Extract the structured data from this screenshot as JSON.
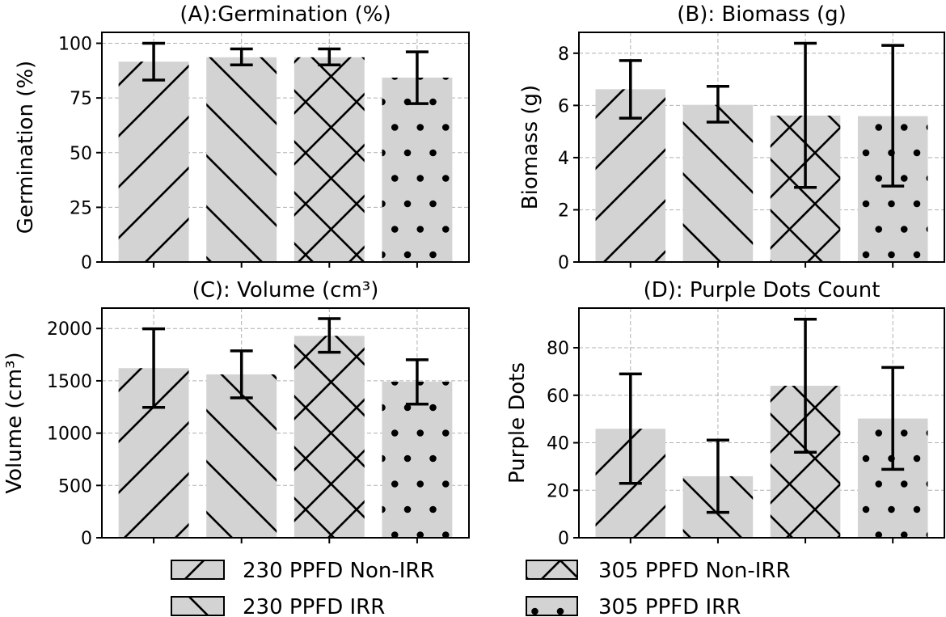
{
  "chart_data": [
    {
      "type": "bar",
      "title": "(A):Germination (%)",
      "xlabel": "",
      "ylabel": "Germination (%)",
      "categories": [
        "230 PPFD Non-IRR",
        "230 PPFD IRR",
        "305 PPFD Non-IRR",
        "305 PPFD IRR"
      ],
      "values": [
        91.6,
        93.6,
        93.6,
        84.3
      ],
      "error_low": [
        83.2,
        90.1,
        90.1,
        72.4
      ],
      "error_high": [
        100.0,
        97.4,
        97.4,
        96.1
      ],
      "ylim": [
        0,
        105
      ],
      "yticks": [
        0,
        25,
        50,
        75,
        100
      ],
      "ytick_labels": [
        "0",
        "25",
        "50",
        "75",
        "100"
      ],
      "grid": true
    },
    {
      "type": "bar",
      "title": "(B): Biomass (g)",
      "xlabel": "",
      "ylabel": "Biomass (g)",
      "categories": [
        "230 PPFD Non-IRR",
        "230 PPFD IRR",
        "305 PPFD Non-IRR",
        "305 PPFD IRR"
      ],
      "values": [
        6.62,
        6.02,
        5.61,
        5.59
      ],
      "error_low": [
        5.51,
        5.36,
        2.86,
        2.91
      ],
      "error_high": [
        7.72,
        6.73,
        8.38,
        8.3
      ],
      "ylim": [
        0,
        8.8
      ],
      "yticks": [
        0,
        2,
        4,
        6,
        8
      ],
      "ytick_labels": [
        "0",
        "2",
        "4",
        "6",
        "8"
      ],
      "grid": true
    },
    {
      "type": "bar",
      "title": "(C): Volume (cm³)",
      "xlabel": "",
      "ylabel": "Volume (cm³)",
      "categories": [
        "230 PPFD Non-IRR",
        "230 PPFD IRR",
        "305 PPFD Non-IRR",
        "305 PPFD IRR"
      ],
      "values": [
        1621,
        1561,
        1930,
        1492
      ],
      "error_low": [
        1246,
        1337,
        1773,
        1277
      ],
      "error_high": [
        1997,
        1786,
        2095,
        1701
      ],
      "ylim": [
        0,
        2195
      ],
      "yticks": [
        0,
        500,
        1000,
        1500,
        2000
      ],
      "ytick_labels": [
        "0",
        "500",
        "1000",
        "1500",
        "2000"
      ],
      "grid": true
    },
    {
      "type": "bar",
      "title": "(D): Purple Dots Count",
      "xlabel": "",
      "ylabel": "Purple Dots",
      "categories": [
        "230 PPFD Non-IRR",
        "230 PPFD IRR",
        "305 PPFD Non-IRR",
        "305 PPFD IRR"
      ],
      "values": [
        45.9,
        25.9,
        64.0,
        50.2
      ],
      "error_low": [
        22.9,
        10.7,
        36.0,
        28.8
      ],
      "error_high": [
        69.0,
        41.1,
        92.0,
        71.7
      ],
      "ylim": [
        0,
        96.7
      ],
      "yticks": [
        0,
        20,
        40,
        60,
        80
      ],
      "ytick_labels": [
        "0",
        "20",
        "40",
        "60",
        "80"
      ],
      "grid": true
    }
  ],
  "legend": {
    "placement": "bottom-center",
    "columns": 2,
    "entries": [
      {
        "label": "230 PPFD Non-IRR",
        "hatch": "forward-diagonal"
      },
      {
        "label": "230 PPFD IRR",
        "hatch": "back-diagonal"
      },
      {
        "label": "305 PPFD Non-IRR",
        "hatch": "cross-diagonal"
      },
      {
        "label": "305 PPFD IRR",
        "hatch": "dots"
      }
    ]
  },
  "colors": {
    "bar_fill": "#d3d3d3",
    "hatch": "#000000",
    "grid": "#b0b0b0",
    "axis": "#000000",
    "error_bar": "#000000"
  }
}
